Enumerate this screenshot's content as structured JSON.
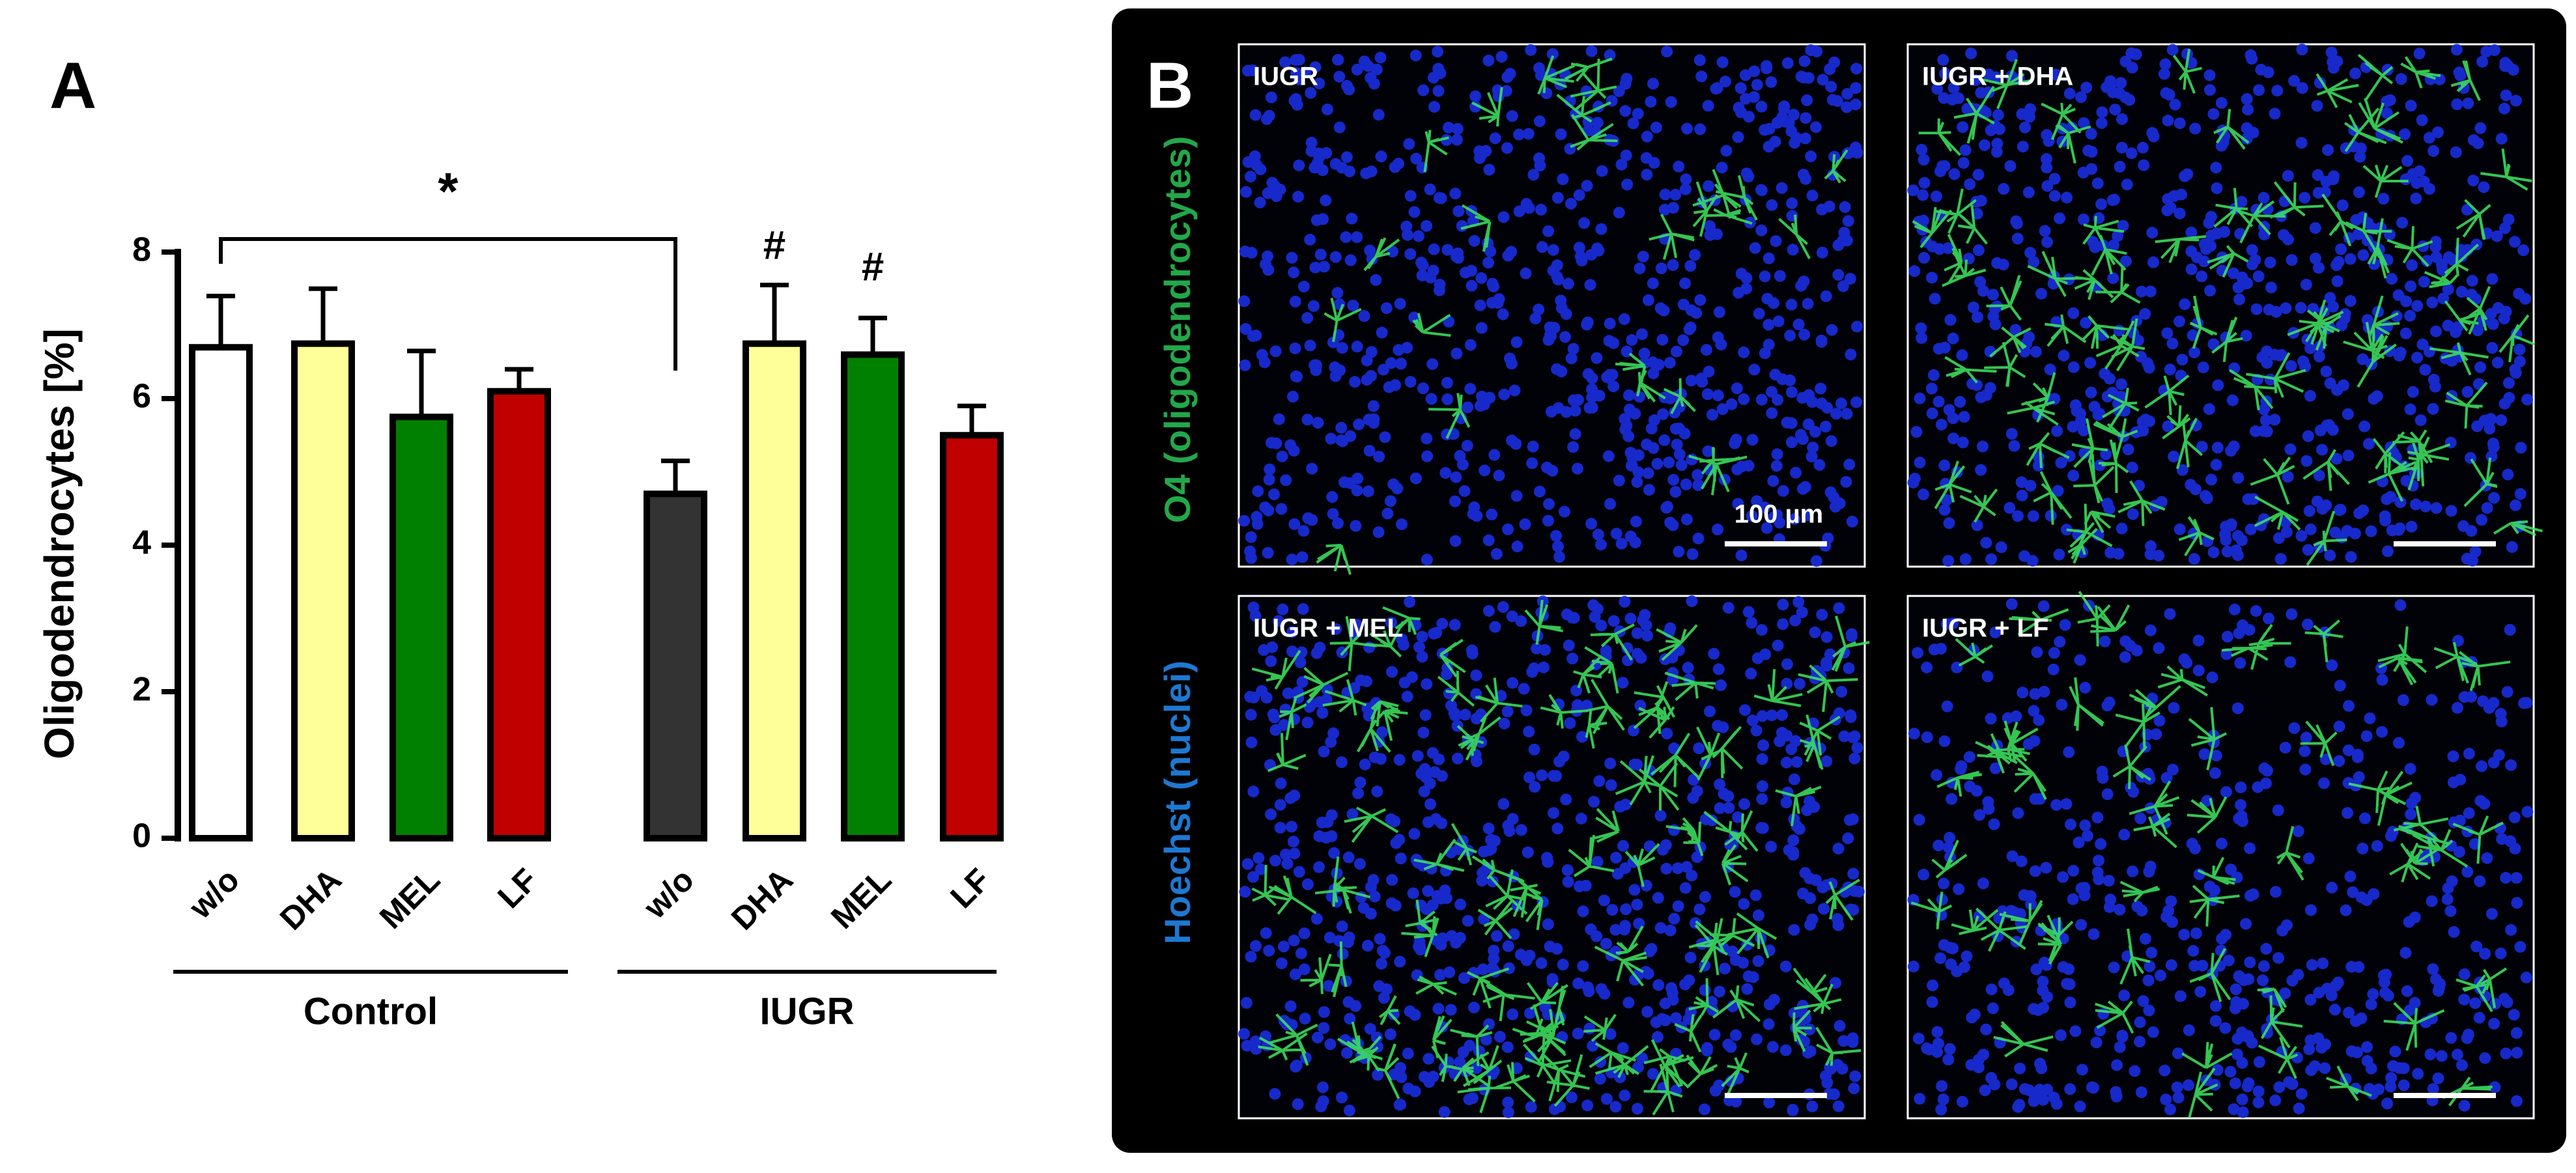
{
  "chart_data": {
    "type": "bar",
    "panel_label": "A",
    "y_label": "Oligodendrocytes [%]",
    "categories": [
      "w/o",
      "DHA",
      "MEL",
      "LF",
      "w/o",
      "DHA",
      "MEL",
      "LF"
    ],
    "groups": [
      "Control",
      "IUGR"
    ],
    "values": [
      6.7,
      6.75,
      5.75,
      6.1,
      4.7,
      6.75,
      6.6,
      5.5
    ],
    "errors": [
      0.7,
      0.75,
      0.9,
      0.3,
      0.45,
      0.8,
      0.5,
      0.4
    ],
    "colors": [
      "#ffffff",
      "#ffff99",
      "#008000",
      "#c00000",
      "#333333",
      "#ffff99",
      "#008000",
      "#c00000"
    ],
    "ylim": [
      0,
      8
    ],
    "yticks": [
      0,
      2,
      4,
      6,
      8
    ],
    "grid": false,
    "annotations": [
      {
        "text": "*"
      },
      {
        "text": "#"
      },
      {
        "text": "#"
      }
    ]
  },
  "panel_b": {
    "label": "B",
    "images": [
      {
        "title": "IUGR"
      },
      {
        "title": "IUGR + DHA"
      },
      {
        "title": "IUGR + MEL"
      },
      {
        "title": "IUGR + LF"
      }
    ],
    "scale_bar": "100 µm",
    "stain_labels": [
      {
        "text": "Hoechst (nuclei)",
        "color": "#1e78d2"
      },
      {
        "text": "O4 (oligodendrocytes)",
        "color": "#22a84a"
      }
    ]
  }
}
